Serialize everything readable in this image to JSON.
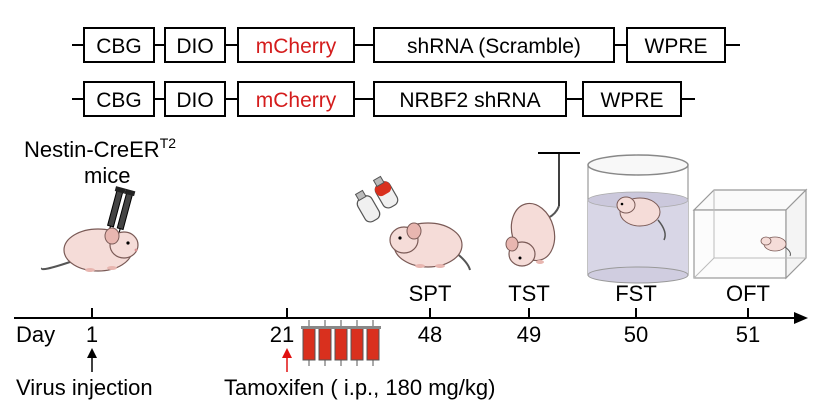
{
  "constructs": [
    {
      "elements": [
        {
          "label": "CBG",
          "color": "#000000"
        },
        {
          "label": "DIO",
          "color": "#000000"
        },
        {
          "label": "mCherry",
          "color": "#d41c1c"
        },
        {
          "label": "shRNA (Scramble)",
          "color": "#000000"
        },
        {
          "label": "WPRE",
          "color": "#000000"
        }
      ]
    },
    {
      "elements": [
        {
          "label": "CBG",
          "color": "#000000"
        },
        {
          "label": "DIO",
          "color": "#000000"
        },
        {
          "label": "mCherry",
          "color": "#d41c1c"
        },
        {
          "label": "NRBF2 shRNA",
          "color": "#000000"
        },
        {
          "label": "WPRE",
          "color": "#000000"
        }
      ]
    }
  ],
  "mouse_label": {
    "line1": "Nestin-CreER",
    "superscript": "T2",
    "line2": "mice"
  },
  "timeline": {
    "axis_label": "Day",
    "ticks": [
      "1",
      "21",
      "48",
      "49",
      "50",
      "51"
    ],
    "tests": [
      "SPT",
      "TST",
      "FST",
      "OFT"
    ],
    "events": [
      {
        "label": "Virus injection",
        "arrow_color": "#000000"
      },
      {
        "label": "Tamoxifen ( i.p., 180 mg/kg)",
        "arrow_color": "#e01010"
      }
    ]
  },
  "colors": {
    "mCherry": "#d41c1c",
    "mouse_body": "#f5dcd8",
    "syringe_red": "#d9301e",
    "water": "#d8d6e6"
  }
}
